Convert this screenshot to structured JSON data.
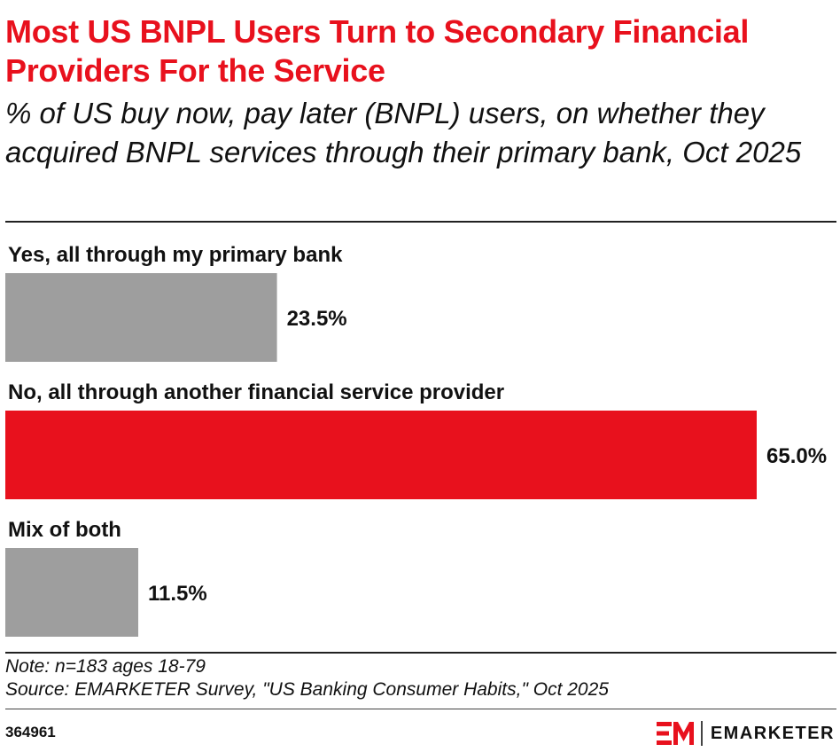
{
  "header": {
    "title": "Most US BNPL Users Turn to Secondary Financial Providers For the Service",
    "subtitle": "% of US buy now, pay later (BNPL) users, on whether they acquired BNPL services through their primary bank, Oct 2025"
  },
  "chart_data": {
    "type": "bar",
    "orientation": "horizontal",
    "categories": [
      "Yes, all through my primary bank",
      "No, all through another financial service provider",
      "Mix of both"
    ],
    "values": [
      23.5,
      65.0,
      11.5
    ],
    "value_labels": [
      "23.5%",
      "65.0%",
      "11.5%"
    ],
    "highlight_index": 1,
    "colors": {
      "default": "#9e9e9e",
      "highlight": "#e8111d"
    },
    "xlim": [
      0,
      65
    ],
    "grid": false,
    "legend": "none"
  },
  "footer": {
    "note": "Note: n=183 ages 18-79",
    "source": "Source: EMARKETER Survey, \"US Banking Consumer Habits,\" Oct 2025",
    "chart_id": "364961",
    "brand_name": "EMARKETER",
    "brand_icon": "em-logo-icon",
    "brand_color": "#e8111d"
  }
}
